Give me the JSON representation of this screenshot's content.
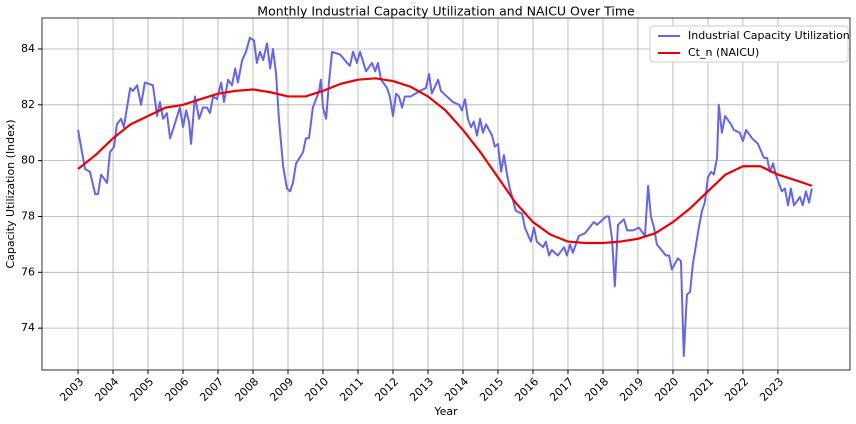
{
  "chart_data": {
    "type": "line",
    "title": "Monthly Industrial Capacity Utilization and NAICU Over Time",
    "x_label": "Year",
    "y_label": "Capacity Utilization (Index)",
    "xlim": [
      2001.97,
      2025.06
    ],
    "ylim": [
      72.5,
      85.11
    ],
    "xticks": [
      2003,
      2004,
      2005,
      2006,
      2007,
      2008,
      2009,
      2010,
      2011,
      2012,
      2013,
      2014,
      2015,
      2016,
      2017,
      2018,
      2019,
      2020,
      2021,
      2022,
      2023
    ],
    "yticks": [
      74,
      76,
      78,
      80,
      82,
      84
    ],
    "grid": true,
    "legend": "upper right",
    "series": [
      {
        "name": "Industrial Capacity Utilization",
        "color": "#6464f0",
        "x": [
          2003.0,
          2003.2,
          2003.34,
          2003.49,
          2003.57,
          2003.66,
          2003.83,
          2003.91,
          2004.03,
          2004.11,
          2004.23,
          2004.31,
          2004.49,
          2004.57,
          2004.69,
          2004.8,
          2004.91,
          2005.14,
          2005.26,
          2005.34,
          2005.43,
          2005.54,
          2005.63,
          2005.71,
          2005.91,
          2006.0,
          2006.09,
          2006.17,
          2006.23,
          2006.34,
          2006.46,
          2006.57,
          2006.69,
          2006.77,
          2006.86,
          2006.97,
          2007.09,
          2007.17,
          2007.29,
          2007.4,
          2007.49,
          2007.57,
          2007.69,
          2007.8,
          2007.91,
          2008.03,
          2008.11,
          2008.2,
          2008.29,
          2008.4,
          2008.49,
          2008.57,
          2008.66,
          2008.74,
          2008.86,
          2008.97,
          2009.06,
          2009.14,
          2009.23,
          2009.43,
          2009.51,
          2009.6,
          2009.71,
          2009.89,
          2009.94,
          2010.0,
          2010.09,
          2010.17,
          2010.26,
          2010.49,
          2010.69,
          2010.77,
          2010.86,
          2010.97,
          2011.06,
          2011.23,
          2011.4,
          2011.49,
          2011.57,
          2011.66,
          2011.83,
          2011.91,
          2012.0,
          2012.09,
          2012.17,
          2012.26,
          2012.34,
          2012.51,
          2012.77,
          2012.94,
          2013.03,
          2013.11,
          2013.29,
          2013.37,
          2013.54,
          2013.71,
          2013.89,
          2013.97,
          2014.06,
          2014.14,
          2014.23,
          2014.31,
          2014.4,
          2014.49,
          2014.57,
          2014.66,
          2014.83,
          2014.91,
          2015.0,
          2015.09,
          2015.17,
          2015.26,
          2015.34,
          2015.51,
          2015.69,
          2015.77,
          2015.94,
          2016.03,
          2016.11,
          2016.29,
          2016.37,
          2016.46,
          2016.54,
          2016.71,
          2016.89,
          2016.97,
          2017.06,
          2017.14,
          2017.31,
          2017.49,
          2017.74,
          2017.83,
          2018.09,
          2018.17,
          2018.26,
          2018.34,
          2018.43,
          2018.6,
          2018.69,
          2018.86,
          2019.03,
          2019.2,
          2019.29,
          2019.37,
          2019.46,
          2019.54,
          2019.8,
          2019.89,
          2019.97,
          2020.14,
          2020.23,
          2020.31,
          2020.4,
          2020.49,
          2020.57,
          2020.74,
          2020.83,
          2020.91,
          2021.0,
          2021.09,
          2021.17,
          2021.26,
          2021.31,
          2021.4,
          2021.49,
          2021.66,
          2021.74,
          2021.91,
          2022.0,
          2022.09,
          2022.26,
          2022.43,
          2022.6,
          2022.69,
          2022.77,
          2022.86,
          2022.94,
          2023.11,
          2023.2,
          2023.29,
          2023.37,
          2023.46,
          2023.63,
          2023.71,
          2023.8,
          2023.89,
          2023.97
        ],
        "values": [
          81.1,
          79.7,
          79.6,
          78.8,
          78.8,
          79.5,
          79.2,
          80.3,
          80.5,
          81.3,
          81.5,
          81.2,
          82.6,
          82.5,
          82.7,
          82.0,
          82.8,
          82.7,
          81.6,
          82.1,
          81.5,
          81.7,
          80.8,
          81.1,
          81.9,
          81.2,
          81.8,
          81.4,
          80.6,
          82.3,
          81.5,
          81.9,
          81.9,
          81.7,
          82.3,
          82.2,
          82.8,
          82.1,
          82.9,
          82.7,
          83.3,
          82.8,
          83.6,
          83.9,
          84.4,
          84.3,
          83.5,
          83.9,
          83.6,
          84.2,
          83.3,
          84.0,
          83.1,
          81.5,
          79.8,
          79.0,
          78.9,
          79.2,
          79.9,
          80.3,
          80.8,
          80.8,
          81.9,
          82.5,
          82.9,
          81.9,
          81.5,
          82.8,
          83.9,
          83.8,
          83.5,
          83.4,
          83.9,
          83.5,
          83.9,
          83.2,
          83.5,
          83.2,
          83.5,
          82.9,
          82.6,
          82.3,
          81.6,
          82.4,
          82.3,
          81.9,
          82.3,
          82.3,
          82.5,
          82.6,
          83.1,
          82.4,
          82.9,
          82.5,
          82.3,
          82.1,
          82.0,
          81.8,
          82.2,
          81.5,
          81.2,
          81.4,
          80.9,
          81.5,
          81.0,
          81.3,
          80.9,
          80.5,
          80.6,
          79.6,
          80.2,
          79.5,
          79.0,
          78.2,
          78.1,
          77.6,
          77.1,
          77.6,
          77.1,
          76.9,
          77.1,
          76.6,
          76.8,
          76.6,
          76.9,
          76.6,
          77.0,
          76.7,
          77.3,
          77.4,
          77.8,
          77.7,
          78.0,
          78.0,
          77.2,
          75.5,
          77.7,
          77.9,
          77.5,
          77.5,
          77.6,
          77.3,
          79.1,
          78.0,
          77.6,
          77.0,
          76.6,
          76.6,
          76.1,
          76.5,
          76.4,
          73.0,
          75.2,
          75.3,
          76.3,
          77.6,
          78.2,
          78.5,
          79.4,
          79.6,
          79.5,
          80.1,
          82.0,
          81.0,
          81.6,
          81.3,
          81.1,
          81.0,
          80.7,
          81.1,
          80.8,
          80.6,
          80.1,
          80.1,
          79.6,
          79.9,
          79.5,
          78.9,
          79.0,
          78.4,
          79.0,
          78.4,
          78.7,
          78.4,
          78.9,
          78.5,
          79.0
        ]
      },
      {
        "name": "Ct_n (NAICU)",
        "color": "#ee0000",
        "x": [
          2003.0,
          2003.5,
          2004.0,
          2004.5,
          2005.0,
          2005.5,
          2006.0,
          2006.5,
          2007.0,
          2007.5,
          2008.0,
          2008.5,
          2009.0,
          2009.5,
          2010.0,
          2010.5,
          2011.0,
          2011.5,
          2012.0,
          2012.5,
          2013.0,
          2013.5,
          2014.0,
          2014.5,
          2015.0,
          2015.5,
          2016.0,
          2016.5,
          2017.0,
          2017.5,
          2018.0,
          2018.5,
          2019.0,
          2019.5,
          2020.0,
          2020.5,
          2021.0,
          2021.5,
          2022.0,
          2022.5,
          2023.0,
          2023.5,
          2023.97
        ],
        "values": [
          79.7,
          80.2,
          80.8,
          81.3,
          81.6,
          81.9,
          82.0,
          82.2,
          82.4,
          82.5,
          82.55,
          82.45,
          82.3,
          82.3,
          82.5,
          82.75,
          82.9,
          82.95,
          82.85,
          82.65,
          82.3,
          81.8,
          81.1,
          80.3,
          79.4,
          78.5,
          77.8,
          77.35,
          77.1,
          77.05,
          77.05,
          77.1,
          77.2,
          77.4,
          77.8,
          78.3,
          78.9,
          79.5,
          79.8,
          79.8,
          79.5,
          79.3,
          79.1
        ]
      }
    ]
  }
}
